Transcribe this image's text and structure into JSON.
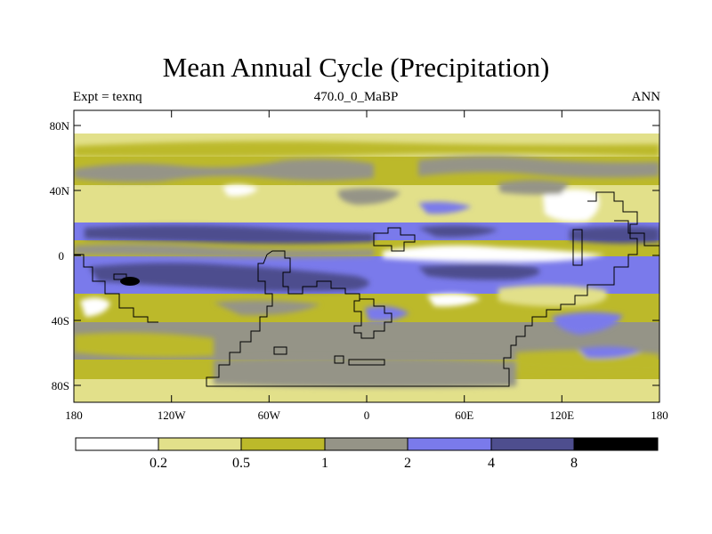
{
  "header": {
    "title": "Mean Annual Cycle (Precipitation)",
    "left_label": "Expt = texnq",
    "center_label": "470.0_0_MaBP",
    "right_label": "ANN"
  },
  "map": {
    "lat_ticks": [
      "80N",
      "40N",
      "0",
      "40S",
      "80S"
    ],
    "lon_ticks": [
      "180",
      "120W",
      "60W",
      "0",
      "60E",
      "120E",
      "180"
    ]
  },
  "colorbar": {
    "labels": [
      "0.2",
      "0.5",
      "1",
      "2",
      "4",
      "8"
    ],
    "colors": [
      "#ffffff",
      "#e2e08a",
      "#bcb92a",
      "#959487",
      "#7a7aeb",
      "#4e4e8e",
      "#000000"
    ]
  }
}
